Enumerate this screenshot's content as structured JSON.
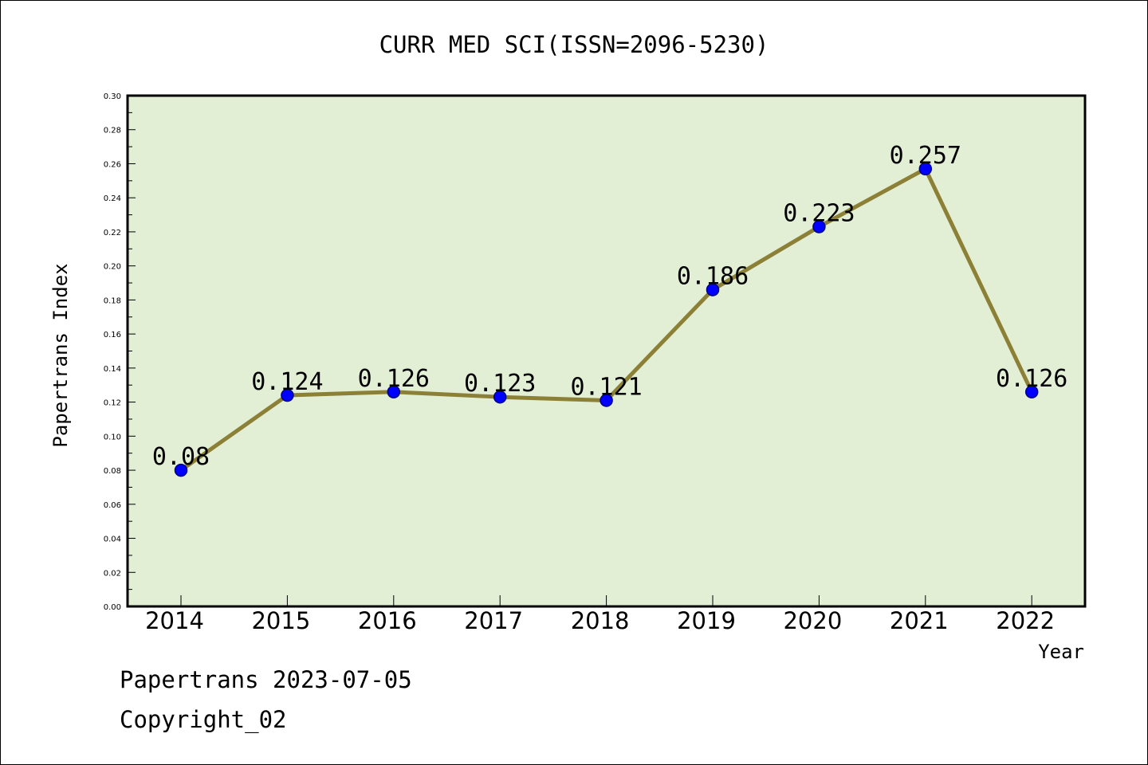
{
  "chart_data": {
    "type": "line",
    "title": "CURR MED SCI(ISSN=2096-5230)",
    "xlabel": "Year",
    "ylabel": "Papertrans Index",
    "categories": [
      "2014",
      "2015",
      "2016",
      "2017",
      "2018",
      "2019",
      "2020",
      "2021",
      "2022"
    ],
    "series": [
      {
        "values": [
          0.08,
          0.124,
          0.126,
          0.123,
          0.121,
          0.186,
          0.223,
          0.257,
          0.126
        ],
        "data_labels": [
          "0.08",
          "0.124",
          "0.126",
          "0.123",
          "0.121",
          "0.186",
          "0.223",
          "0.257",
          "0.126"
        ]
      }
    ],
    "ylim": [
      0,
      0.3
    ],
    "yticks": [
      "0.00",
      "0.02",
      "0.04",
      "0.06",
      "0.08",
      "0.10",
      "0.12",
      "0.14",
      "0.16",
      "0.18",
      "0.20",
      "0.22",
      "0.24",
      "0.26",
      "0.28",
      "0.30"
    ],
    "grid": false,
    "colors": {
      "plot_background": "#e2efd5",
      "line": "#8c8036",
      "marker": "#0000ff",
      "marker_edge": "#000080"
    }
  },
  "footer": {
    "line1": "Papertrans 2023-07-05",
    "line2": "Copyright_02"
  }
}
